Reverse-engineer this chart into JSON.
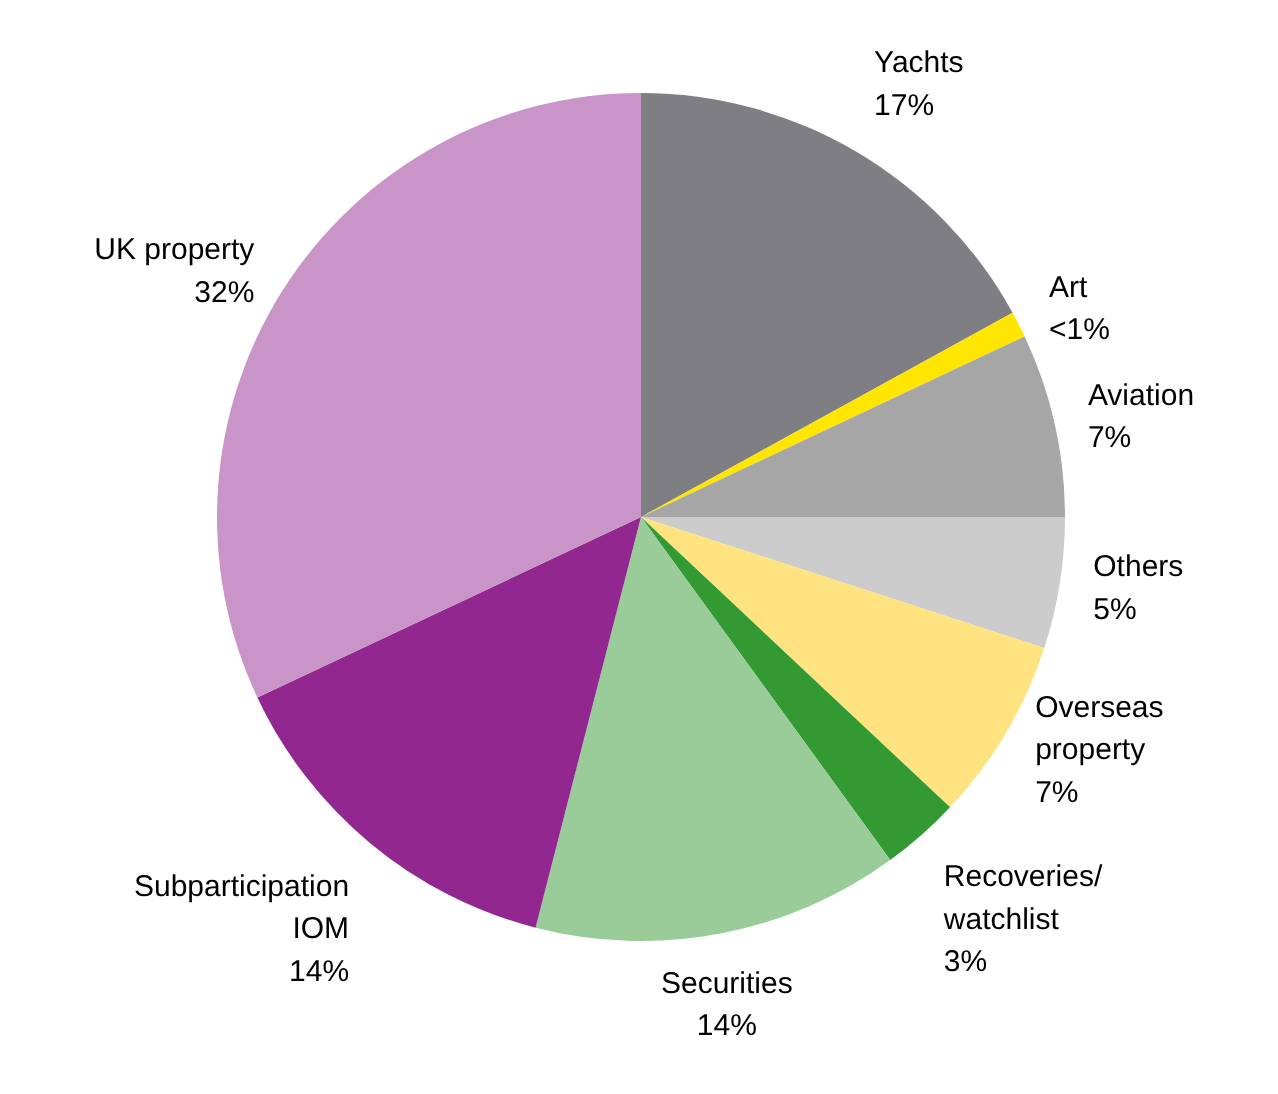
{
  "chart_data": {
    "type": "pie",
    "categories": [
      "Yachts",
      "Art",
      "Aviation",
      "Others",
      "Overseas\nproperty",
      "Recoveries/\nwatchlist",
      "Securities",
      "Subparticipation\nIOM",
      "UK property"
    ],
    "values": [
      17,
      1,
      7,
      5,
      7,
      3,
      14,
      14,
      32
    ],
    "value_labels": [
      "17%",
      "<1%",
      "7%",
      "5%",
      "7%",
      "3%",
      "14%",
      "14%",
      "32%"
    ],
    "colors": [
      "#7f7e83",
      "#ffe600",
      "#a6a6a6",
      "#cccccc",
      "#ffe380",
      "#339933",
      "#99cc99",
      "#92278f",
      "#c994c7"
    ]
  }
}
